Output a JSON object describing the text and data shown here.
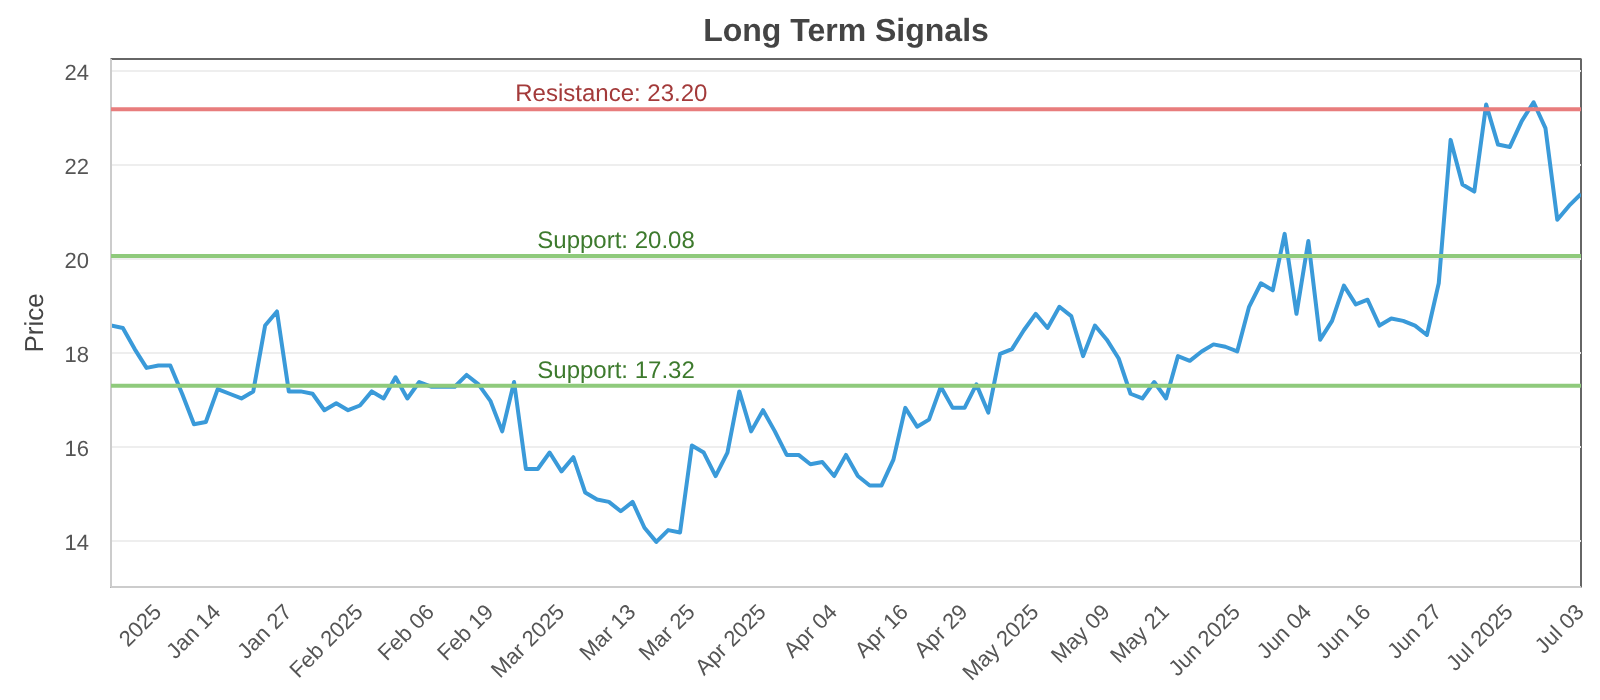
{
  "chart_data": {
    "type": "line",
    "title": "Long Term Signals",
    "ylabel": "Price",
    "categories": [
      null,
      null,
      null,
      null,
      "2025",
      null,
      null,
      null,
      null,
      "Jan 14",
      null,
      null,
      null,
      null,
      null,
      "Jan 27",
      null,
      null,
      null,
      null,
      null,
      "Feb 2025",
      null,
      null,
      null,
      null,
      null,
      "Feb 06",
      null,
      null,
      null,
      null,
      "Feb 19",
      null,
      null,
      null,
      null,
      null,
      "Mar 2025",
      null,
      null,
      null,
      null,
      null,
      "Mar 13",
      null,
      null,
      null,
      null,
      "Mar 25",
      null,
      null,
      null,
      null,
      null,
      "Apr 2025",
      null,
      null,
      null,
      null,
      null,
      "Apr 04",
      null,
      null,
      null,
      null,
      null,
      "Apr 16",
      null,
      null,
      null,
      null,
      "Apr 29",
      null,
      null,
      null,
      null,
      null,
      "May 2025",
      null,
      null,
      null,
      null,
      null,
      "May 09",
      null,
      null,
      null,
      null,
      "May 21",
      null,
      null,
      null,
      null,
      null,
      "Jun 2025",
      null,
      null,
      null,
      null,
      null,
      "Jun 04",
      null,
      null,
      null,
      null,
      "Jun 16",
      null,
      null,
      null,
      null,
      null,
      "Jun 27",
      null,
      null,
      null,
      null,
      null,
      "Jul 2025",
      null,
      null,
      null,
      null,
      null,
      "Jul 03"
    ],
    "series": [
      {
        "color": "#3a9ad9",
        "values": [
          18.6,
          18.55,
          18.1,
          17.7,
          17.75,
          17.75,
          17.15,
          16.5,
          16.55,
          17.25,
          17.15,
          17.05,
          17.2,
          18.6,
          18.9,
          17.2,
          17.2,
          17.15,
          16.8,
          16.95,
          16.8,
          16.9,
          17.2,
          17.05,
          17.5,
          17.05,
          17.4,
          17.3,
          17.3,
          17.3,
          17.55,
          17.35,
          17.0,
          16.35,
          17.4,
          15.55,
          15.55,
          15.9,
          15.5,
          15.8,
          15.05,
          14.9,
          14.85,
          14.65,
          14.85,
          14.3,
          14.0,
          14.25,
          14.2,
          16.05,
          15.9,
          15.4,
          15.9,
          17.2,
          16.35,
          16.8,
          16.35,
          15.85,
          15.85,
          15.65,
          15.7,
          15.4,
          15.85,
          15.4,
          15.2,
          15.2,
          15.75,
          16.85,
          16.45,
          16.6,
          17.3,
          16.85,
          16.85,
          17.35,
          16.75,
          18.0,
          18.1,
          18.5,
          18.85,
          18.55,
          19.0,
          18.8,
          17.95,
          18.6,
          18.3,
          17.9,
          17.15,
          17.05,
          17.4,
          17.05,
          17.95,
          17.85,
          18.05,
          18.2,
          18.15,
          18.05,
          19.0,
          19.5,
          19.35,
          20.55,
          18.85,
          20.4,
          18.3,
          18.7,
          19.45,
          19.05,
          19.15,
          18.6,
          18.75,
          18.7,
          18.6,
          18.4,
          19.5,
          22.55,
          21.6,
          21.45,
          23.3,
          22.45,
          22.4,
          22.95,
          23.35,
          22.8,
          20.85,
          21.15,
          21.4
        ]
      }
    ],
    "ylim": [
      13.04,
      24.27
    ],
    "yticks": [
      14,
      16,
      18,
      20,
      22,
      24
    ],
    "grid": "y",
    "ref_lines": [
      {
        "axis": "y",
        "value": 23.2,
        "label": "Resistance: 23.20",
        "color": "#e87d7d"
      },
      {
        "axis": "y",
        "value": 20.08,
        "label": "Support: 20.08",
        "color": "#8fca7c"
      },
      {
        "axis": "y",
        "value": 17.32,
        "label": "Support: 17.32",
        "color": "#8fca7c"
      }
    ]
  }
}
